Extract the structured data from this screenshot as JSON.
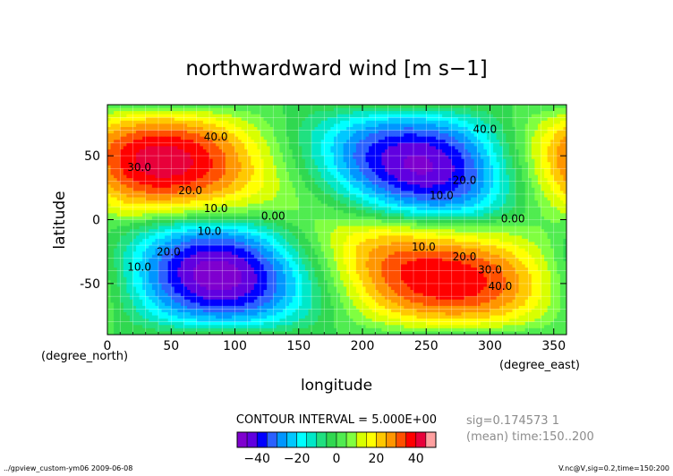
{
  "chart_data": {
    "type": "heatmap",
    "title": "northwardward wind [m s−1]",
    "xlabel": "longitude",
    "ylabel": "latitude",
    "x_unit": "(degree_east)",
    "y_unit": "(degree_north)",
    "xlim": [
      0,
      360
    ],
    "ylim": [
      -90,
      90
    ],
    "x_ticks": [
      0,
      50,
      100,
      150,
      200,
      250,
      300,
      350
    ],
    "y_ticks": [
      -50,
      0,
      50
    ],
    "contour_interval_text": "CONTOUR INTERVAL = 5.000E+00",
    "contour_labels": [
      {
        "text": "40.0",
        "lon": 85,
        "lat": 62
      },
      {
        "text": "30.0",
        "lon": 25,
        "lat": 38
      },
      {
        "text": "20.0",
        "lon": 65,
        "lat": 20
      },
      {
        "text": "10.0",
        "lon": 85,
        "lat": 6
      },
      {
        "text": "0.00",
        "lon": 130,
        "lat": 0
      },
      {
        "text": "10.0",
        "lon": 80,
        "lat": -12
      },
      {
        "text": "20.0",
        "lon": 48,
        "lat": -28
      },
      {
        "text": "10.0",
        "lon": 25,
        "lat": -40
      },
      {
        "text": "20.0",
        "lon": 280,
        "lat": 28
      },
      {
        "text": "10.0",
        "lon": 262,
        "lat": 16
      },
      {
        "text": "0.00",
        "lon": 318,
        "lat": -2
      },
      {
        "text": "10.0",
        "lon": 248,
        "lat": -24
      },
      {
        "text": "20.0",
        "lon": 280,
        "lat": -32
      },
      {
        "text": "30.0",
        "lon": 300,
        "lat": -42
      },
      {
        "text": "40.0",
        "lon": 308,
        "lat": -55
      },
      {
        "text": "40.0",
        "lon": 296,
        "lat": 68
      }
    ],
    "colorbar": {
      "ticks": [
        -40,
        -20,
        0,
        20,
        40
      ],
      "levels": [
        -50,
        -45,
        -40,
        -35,
        -30,
        -25,
        -20,
        -15,
        -10,
        -5,
        0,
        5,
        10,
        15,
        20,
        25,
        30,
        35,
        40,
        45,
        50
      ],
      "colors": [
        "#7f00cf",
        "#6000e0",
        "#0000ff",
        "#2a60ff",
        "#0096ff",
        "#00c8ff",
        "#00ffff",
        "#00e8c8",
        "#20e080",
        "#30d850",
        "#50ec50",
        "#80ff40",
        "#d8ff00",
        "#ffff00",
        "#ffc800",
        "#ff9600",
        "#ff5000",
        "#ff0000",
        "#e8003a",
        "#ffa0a0"
      ]
    },
    "grid": true
  },
  "annotations": {
    "sig_line1": "sig=0.174573 1",
    "sig_line2": "(mean) time:150..200",
    "footer_left": "../gpview_custom-ym06  2009-06-08",
    "footer_right": "V.nc@V,sig=0.2,time=150:200"
  }
}
